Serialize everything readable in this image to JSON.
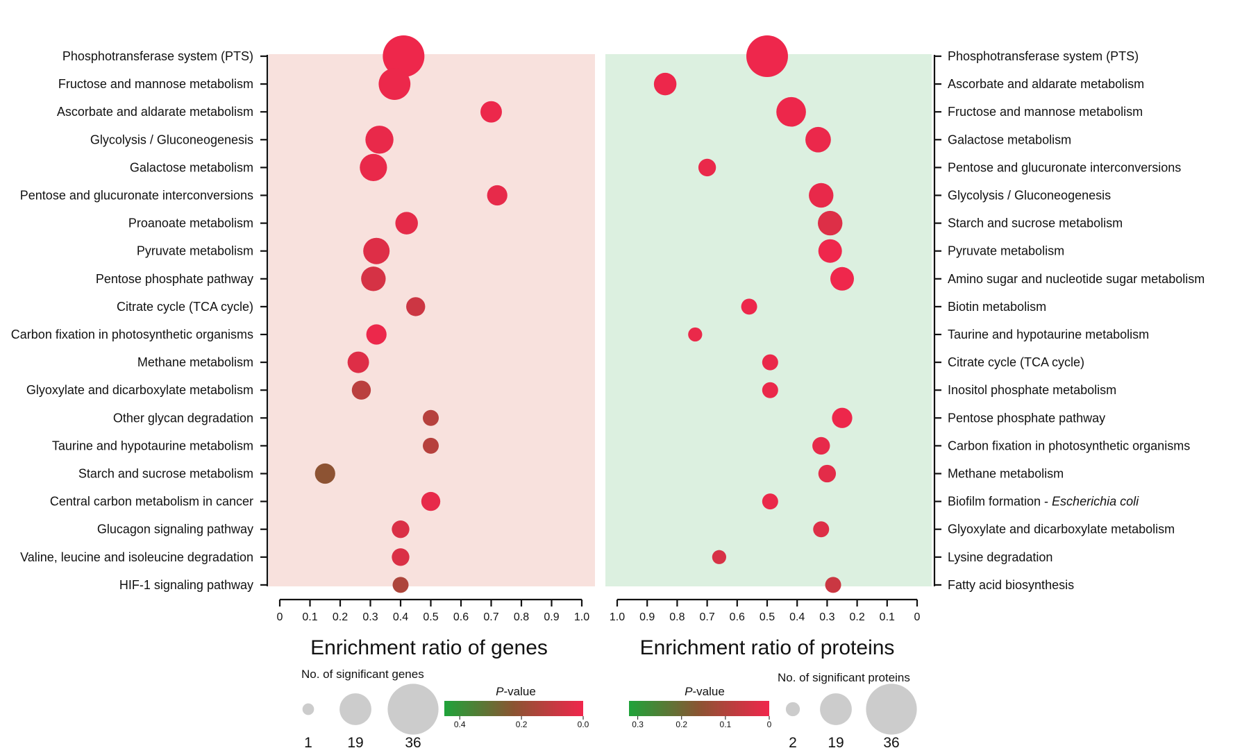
{
  "chart_data": [
    {
      "type": "scatter",
      "xlabel": "Enrichment ratio of genes",
      "xlim": [
        0,
        1.0
      ],
      "x_reversed": false,
      "xticks": [
        "0",
        "0.1",
        "0.2",
        "0.3",
        "0.4",
        "0.5",
        "0.6",
        "0.7",
        "0.8",
        "0.9",
        "1.0"
      ],
      "background_color": "#f8e1dd",
      "label_side": "left",
      "points": [
        {
          "pathway": "Phosphotransferase system (PTS)",
          "ratio": 0.41,
          "count": 36,
          "pvalue": 0.005
        },
        {
          "pathway": "Fructose and mannose metabolism",
          "ratio": 0.38,
          "count": 19,
          "pvalue": 0.01
        },
        {
          "pathway": "Ascorbate and aldarate metabolism",
          "ratio": 0.7,
          "count": 7,
          "pvalue": 0.01
        },
        {
          "pathway": "Glycolysis / Gluconeogenesis",
          "ratio": 0.33,
          "count": 14,
          "pvalue": 0.015
        },
        {
          "pathway": "Galactose metabolism",
          "ratio": 0.31,
          "count": 13,
          "pvalue": 0.015
        },
        {
          "pathway": "Pentose and glucuronate interconversions",
          "ratio": 0.72,
          "count": 6,
          "pvalue": 0.02
        },
        {
          "pathway": "Proanoate metabolism",
          "ratio": 0.42,
          "count": 8,
          "pvalue": 0.025
        },
        {
          "pathway": "Pyruvate metabolism",
          "ratio": 0.32,
          "count": 12,
          "pvalue": 0.04
        },
        {
          "pathway": "Pentose phosphate pathway",
          "ratio": 0.31,
          "count": 10,
          "pvalue": 0.06
        },
        {
          "pathway": "Citrate cycle (TCA cycle)",
          "ratio": 0.45,
          "count": 5,
          "pvalue": 0.08
        },
        {
          "pathway": "Carbon fixation in photosynthetic organisms",
          "ratio": 0.32,
          "count": 6,
          "pvalue": 0.01
        },
        {
          "pathway": "Methane metabolism",
          "ratio": 0.26,
          "count": 7,
          "pvalue": 0.04
        },
        {
          "pathway": "Glyoxylate and dicarboxylate metabolism",
          "ratio": 0.27,
          "count": 5,
          "pvalue": 0.12
        },
        {
          "pathway": "Other glycan degradation",
          "ratio": 0.5,
          "count": 3,
          "pvalue": 0.13
        },
        {
          "pathway": "Taurine and hypotaurine metabolism",
          "ratio": 0.5,
          "count": 3,
          "pvalue": 0.13
        },
        {
          "pathway": "Starch and sucrose metabolism",
          "ratio": 0.15,
          "count": 6,
          "pvalue": 0.22
        },
        {
          "pathway": "Central carbon metabolism in cancer",
          "ratio": 0.5,
          "count": 5,
          "pvalue": 0.02
        },
        {
          "pathway": "Glucagon signaling pathway",
          "ratio": 0.4,
          "count": 4,
          "pvalue": 0.05
        },
        {
          "pathway": "Valine, leucine and isoleucine degradation",
          "ratio": 0.4,
          "count": 4,
          "pvalue": 0.05
        },
        {
          "pathway": "HIF-1 signaling pathway",
          "ratio": 0.4,
          "count": 3,
          "pvalue": 0.15
        }
      ],
      "legend": {
        "size_title": "No. of significant genes",
        "size_values": [
          1,
          19,
          36
        ],
        "size_labels": [
          "1",
          "19",
          "36"
        ],
        "color_title_italic": "P",
        "color_title_rest": "-value",
        "color_ticks": [
          "0.4",
          "0.2",
          "0.0"
        ],
        "color_range": [
          0.45,
          0.0
        ],
        "color_low": "#1fa33a",
        "color_mid": "#8b5432",
        "color_high": "#f0264c"
      }
    },
    {
      "type": "scatter",
      "xlabel": "Enrichment ratio of proteins",
      "xlim": [
        0,
        1.0
      ],
      "x_reversed": true,
      "xticks": [
        "1.0",
        "0.9",
        "0.8",
        "0.7",
        "0.6",
        "0.5",
        "0.4",
        "0.3",
        "0.2",
        "0.1",
        "0"
      ],
      "background_color": "#dcf0e0",
      "label_side": "right",
      "points": [
        {
          "pathway": "Phosphotransferase system (PTS)",
          "ratio": 0.5,
          "count": 36,
          "pvalue": 0.003
        },
        {
          "pathway": "Ascorbate and aldarate metabolism",
          "ratio": 0.84,
          "count": 8,
          "pvalue": 0.005
        },
        {
          "pathway": "Fructose and mannose metabolism",
          "ratio": 0.42,
          "count": 16,
          "pvalue": 0.005
        },
        {
          "pathway": "Galactose metabolism",
          "ratio": 0.33,
          "count": 11,
          "pvalue": 0.008
        },
        {
          "pathway": "Pentose and glucuronate interconversions",
          "ratio": 0.7,
          "count": 4,
          "pvalue": 0.01
        },
        {
          "pathway": "Glycolysis / Gluconeogenesis",
          "ratio": 0.32,
          "count": 10,
          "pvalue": 0.012
        },
        {
          "pathway": "Starch and sucrose metabolism",
          "ratio": 0.29,
          "count": 10,
          "pvalue": 0.03
        },
        {
          "pathway": "Pyruvate metabolism",
          "ratio": 0.29,
          "count": 9,
          "pvalue": 0.002
        },
        {
          "pathway": "Amino sugar and nucleotide sugar metabolism",
          "ratio": 0.25,
          "count": 9,
          "pvalue": 0.002
        },
        {
          "pathway": "Biotin metabolism",
          "ratio": 0.56,
          "count": 3,
          "pvalue": 0.005
        },
        {
          "pathway": "Taurine and hypotaurine metabolism",
          "ratio": 0.74,
          "count": 2,
          "pvalue": 0.01
        },
        {
          "pathway": "Citrate cycle (TCA cycle)",
          "ratio": 0.49,
          "count": 3,
          "pvalue": 0.01
        },
        {
          "pathway": "Inositol phosphate metabolism",
          "ratio": 0.49,
          "count": 3,
          "pvalue": 0.01
        },
        {
          "pathway": "Pentose phosphate pathway",
          "ratio": 0.25,
          "count": 6,
          "pvalue": 0.005
        },
        {
          "pathway": "Carbon fixation in photosynthetic organisms",
          "ratio": 0.32,
          "count": 4,
          "pvalue": 0.015
        },
        {
          "pathway": "Methane metabolism",
          "ratio": 0.3,
          "count": 4,
          "pvalue": 0.02
        },
        {
          "pathway": "Biofilm formation - Escherichia coli",
          "ratio": 0.49,
          "count": 3,
          "pvalue": 0.01
        },
        {
          "pathway": "Glyoxylate and dicarboxylate metabolism",
          "ratio": 0.32,
          "count": 3,
          "pvalue": 0.03
        },
        {
          "pathway": "Lysine degradation",
          "ratio": 0.66,
          "count": 2,
          "pvalue": 0.04
        },
        {
          "pathway": "Fatty acid biosynthesis",
          "ratio": 0.28,
          "count": 3,
          "pvalue": 0.06
        }
      ],
      "legend": {
        "size_title": "No. of significant proteins",
        "size_values": [
          2,
          19,
          36
        ],
        "size_labels": [
          "2",
          "19",
          "36"
        ],
        "color_title_italic": "P",
        "color_title_rest": "-value",
        "color_ticks": [
          "0.3",
          "0.2",
          "0.1",
          "0"
        ],
        "color_range": [
          0.32,
          0.0
        ],
        "color_low": "#1fa33a",
        "color_mid": "#8b5432",
        "color_high": "#f0264c"
      }
    }
  ]
}
